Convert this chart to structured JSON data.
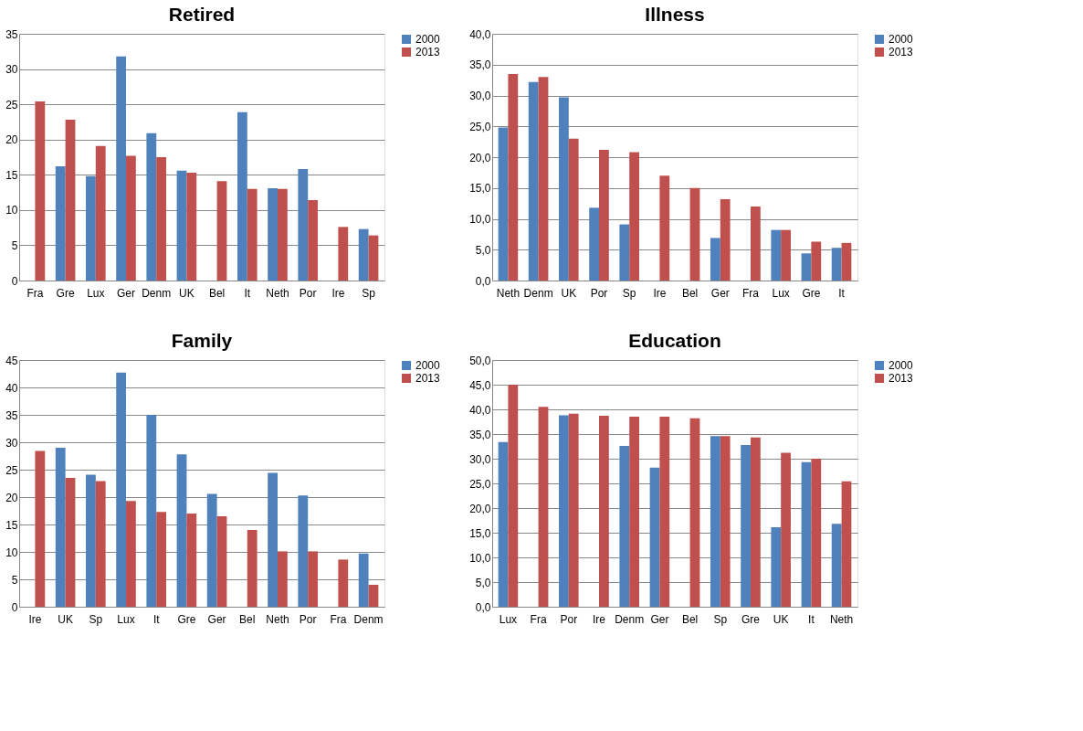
{
  "chart_data": [
    {
      "type": "bar",
      "title": "Retired",
      "categories": [
        "Fra",
        "Gre",
        "Lux",
        "Ger",
        "Denm",
        "UK",
        "Bel",
        "It",
        "Neth",
        "Por",
        "Ire",
        "Sp"
      ],
      "series": [
        {
          "name": "2000",
          "color": "#4f81bd",
          "values": [
            null,
            16.2,
            14.8,
            31.8,
            20.9,
            15.6,
            null,
            23.9,
            13.1,
            15.8,
            null,
            7.3
          ]
        },
        {
          "name": "2013",
          "color": "#c0504d",
          "values": [
            25.4,
            22.8,
            19.1,
            17.7,
            17.5,
            15.3,
            14.1,
            13.0,
            13.0,
            11.4,
            7.6,
            6.4
          ]
        }
      ],
      "ylim": [
        0,
        35
      ],
      "yticks": [
        0,
        5,
        10,
        15,
        20,
        25,
        30,
        35
      ],
      "grid": "y",
      "legend": "right"
    },
    {
      "type": "bar",
      "title": "Illness",
      "categories": [
        "Neth",
        "Denm",
        "UK",
        "Por",
        "Sp",
        "Ire",
        "Bel",
        "Ger",
        "Fra",
        "Lux",
        "Gre",
        "It"
      ],
      "series": [
        {
          "name": "2000",
          "color": "#4f81bd",
          "values": [
            24.8,
            32.2,
            29.7,
            11.8,
            9.1,
            null,
            null,
            6.9,
            null,
            8.2,
            4.4,
            5.3
          ]
        },
        {
          "name": "2013",
          "color": "#c0504d",
          "values": [
            33.5,
            33.0,
            23.0,
            21.2,
            20.8,
            17.0,
            15.0,
            13.2,
            12.0,
            8.2,
            6.3,
            6.1
          ]
        }
      ],
      "ylim": [
        0,
        40
      ],
      "yticks": [
        {
          "value": 0,
          "label": "0,0"
        },
        {
          "value": 5,
          "label": "5,0"
        },
        {
          "value": 10,
          "label": "10,0"
        },
        {
          "value": 15,
          "label": "15,0"
        },
        {
          "value": 20,
          "label": "20,0"
        },
        {
          "value": 25,
          "label": "25,0"
        },
        {
          "value": 30,
          "label": "30,0"
        },
        {
          "value": 35,
          "label": "35,0"
        },
        {
          "value": 40,
          "label": "40,0"
        }
      ],
      "grid": "y",
      "legend": "right"
    },
    {
      "type": "bar",
      "title": "Family",
      "categories": [
        "Ire",
        "UK",
        "Sp",
        "Lux",
        "It",
        "Gre",
        "Ger",
        "Bel",
        "Neth",
        "Por",
        "Fra",
        "Denm"
      ],
      "series": [
        {
          "name": "2000",
          "color": "#4f81bd",
          "values": [
            null,
            29.0,
            24.1,
            42.7,
            35.0,
            27.8,
            20.6,
            null,
            24.4,
            20.3,
            null,
            9.7
          ]
        },
        {
          "name": "2013",
          "color": "#c0504d",
          "values": [
            28.4,
            23.5,
            22.9,
            19.3,
            17.3,
            17.0,
            16.5,
            14.0,
            10.1,
            10.1,
            8.6,
            4.0
          ]
        }
      ],
      "ylim": [
        0,
        45
      ],
      "yticks": [
        0,
        5,
        10,
        15,
        20,
        25,
        30,
        35,
        40,
        45
      ],
      "grid": "y",
      "legend": "right"
    },
    {
      "type": "bar",
      "title": "Education",
      "categories": [
        "Lux",
        "Fra",
        "Por",
        "Ire",
        "Denm",
        "Ger",
        "Bel",
        "Sp",
        "Gre",
        "UK",
        "It",
        "Neth"
      ],
      "series": [
        {
          "name": "2000",
          "color": "#4f81bd",
          "values": [
            33.4,
            null,
            38.8,
            null,
            32.6,
            28.2,
            null,
            34.6,
            32.8,
            16.1,
            29.3,
            16.8
          ]
        },
        {
          "name": "2013",
          "color": "#c0504d",
          "values": [
            45.0,
            40.5,
            39.1,
            38.7,
            38.5,
            38.5,
            38.2,
            34.6,
            34.3,
            31.2,
            30.0,
            25.4
          ]
        }
      ],
      "ylim": [
        0,
        50
      ],
      "yticks": [
        {
          "value": 0,
          "label": "0,0"
        },
        {
          "value": 5,
          "label": "5,0"
        },
        {
          "value": 10,
          "label": "10,0"
        },
        {
          "value": 15,
          "label": "15,0"
        },
        {
          "value": 20,
          "label": "20,0"
        },
        {
          "value": 25,
          "label": "25,0"
        },
        {
          "value": 30,
          "label": "30,0"
        },
        {
          "value": 35,
          "label": "35,0"
        },
        {
          "value": 40,
          "label": "40,0"
        },
        {
          "value": 45,
          "label": "45,0"
        },
        {
          "value": 50,
          "label": "50,0"
        }
      ],
      "grid": "y",
      "legend": "right"
    }
  ]
}
